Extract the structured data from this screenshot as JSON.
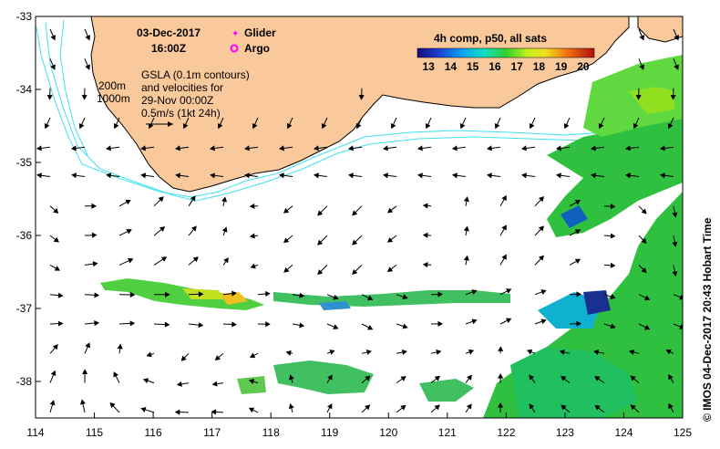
{
  "map": {
    "date_label": "03-Dec-2017",
    "time_label": "16:00Z",
    "legend_glider": "Glider",
    "legend_argo": "Argo",
    "glider_color": "#ff00ff",
    "argo_color": "#ff00ff",
    "depth_200": "200m",
    "depth_1000": "1000m",
    "gsla_line1": "GSLA (0.1m contours)",
    "gsla_line2": "and velocities for",
    "gsla_line3": "29-Nov 00:00Z",
    "gsla_line4": "0.5m/s (1kt 24h)",
    "colorbar_title": "4h comp, p50, all sats",
    "colorbar_ticks": [
      "13",
      "14",
      "15",
      "16",
      "17",
      "18",
      "19",
      "20"
    ],
    "colorbar_range": [
      12.5,
      20.5
    ],
    "side_label": "© IMOS 04-Dec-2017 20:43 Hobart Time",
    "x_ticks": [
      "114",
      "115",
      "116",
      "117",
      "118",
      "119",
      "120",
      "121",
      "122",
      "123",
      "124",
      "125"
    ],
    "y_ticks": [
      "-33",
      "-34",
      "-35",
      "-36",
      "-37",
      "-38"
    ],
    "lon_range": [
      114,
      125
    ],
    "lat_range": [
      -38.5,
      -33
    ],
    "land_color": "#f9c89b",
    "contour_color": "#40e0f0"
  }
}
